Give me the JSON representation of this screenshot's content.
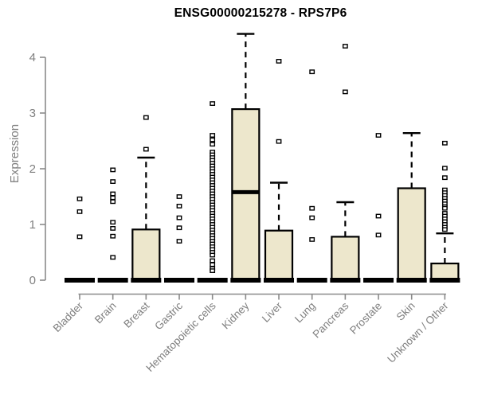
{
  "chart_data": {
    "type": "boxplot",
    "title": "ENSG00000215278 - RPS7P6",
    "ylabel": "Expression",
    "xlabel": "",
    "ylim": [
      0,
      4.45
    ],
    "yticks": [
      0,
      1,
      2,
      3,
      4
    ],
    "grid": false,
    "legend": "none",
    "categories": [
      "Bladder",
      "Brain",
      "Breast",
      "Gastric",
      "Hematopoietic cells",
      "Kidney",
      "Liver",
      "Lung",
      "Pancreas",
      "Prostate",
      "Skin",
      "Unknown / Other"
    ],
    "boxes": [
      {
        "category": "Bladder",
        "q1": 0,
        "median": 0,
        "q3": 0,
        "whisker_low": 0,
        "whisker_high": 0,
        "outliers": [
          0.78,
          1.23,
          1.46
        ]
      },
      {
        "category": "Brain",
        "q1": 0,
        "median": 0,
        "q3": 0,
        "whisker_low": 0,
        "whisker_high": 0,
        "outliers": [
          0.41,
          0.79,
          0.93,
          1.04,
          1.41,
          1.48,
          1.55,
          1.77,
          1.98
        ]
      },
      {
        "category": "Breast",
        "q1": 0,
        "median": 0,
        "q3": 0.91,
        "whisker_low": 0,
        "whisker_high": 2.2,
        "outliers": [
          2.35,
          2.92
        ]
      },
      {
        "category": "Gastric",
        "q1": 0,
        "median": 0,
        "q3": 0,
        "whisker_low": 0,
        "whisker_high": 0,
        "outliers": [
          0.7,
          0.94,
          1.12,
          1.33,
          1.5
        ]
      },
      {
        "category": "Hematopoietic cells",
        "q1": 0,
        "median": 0,
        "q3": 0,
        "whisker_low": 0,
        "whisker_high": 0,
        "outliers": [
          3.17,
          2.6,
          2.52,
          2.44,
          2.3,
          2.25,
          2.2,
          2.15,
          2.1,
          2.05,
          2.0,
          1.95,
          1.9,
          1.85,
          1.8,
          1.75,
          1.7,
          1.65,
          1.6,
          1.55,
          1.5,
          1.45,
          1.4,
          1.35,
          1.3,
          1.25,
          1.2,
          1.15,
          1.1,
          1.05,
          1.0,
          0.95,
          0.9,
          0.85,
          0.8,
          0.75,
          0.7,
          0.65,
          0.6,
          0.55,
          0.5,
          0.45,
          0.35,
          0.28,
          0.21,
          0.17
        ]
      },
      {
        "category": "Kidney",
        "q1": 0,
        "median": 1.58,
        "q3": 3.07,
        "whisker_low": 0,
        "whisker_high": 4.42,
        "outliers": []
      },
      {
        "category": "Liver",
        "q1": 0,
        "median": 0,
        "q3": 0.89,
        "whisker_low": 0,
        "whisker_high": 1.75,
        "outliers": [
          2.49,
          3.93
        ]
      },
      {
        "category": "Lung",
        "q1": 0,
        "median": 0,
        "q3": 0,
        "whisker_low": 0,
        "whisker_high": 0,
        "outliers": [
          0.73,
          1.12,
          1.29,
          3.74
        ]
      },
      {
        "category": "Pancreas",
        "q1": 0,
        "median": 0,
        "q3": 0.78,
        "whisker_low": 0,
        "whisker_high": 1.4,
        "outliers": [
          3.38,
          4.2
        ]
      },
      {
        "category": "Prostate",
        "q1": 0,
        "median": 0,
        "q3": 0,
        "whisker_low": 0,
        "whisker_high": 0,
        "outliers": [
          0.81,
          1.15,
          2.6
        ]
      },
      {
        "category": "Skin",
        "q1": 0,
        "median": 0,
        "q3": 1.65,
        "whisker_low": 0,
        "whisker_high": 2.64,
        "outliers": []
      },
      {
        "category": "Unknown / Other",
        "q1": 0,
        "median": 0,
        "q3": 0.3,
        "whisker_low": 0,
        "whisker_high": 0.84,
        "outliers": [
          2.46,
          2.01,
          1.84,
          1.62,
          1.57,
          1.52,
          1.47,
          1.42,
          1.37,
          1.32,
          1.29,
          1.2,
          1.15,
          1.1,
          1.05,
          1.0,
          0.95,
          0.91
        ]
      }
    ],
    "colors": {
      "box_fill": "#EDE7CC",
      "box_stroke": "#000000",
      "median": "#000000",
      "whisker": "#000000",
      "outlier_fill": "#ffffff",
      "outlier_stroke": "#000000",
      "axis": "#8a8a8a",
      "tick_label": "#7f7f7f",
      "title": "#000000"
    }
  }
}
